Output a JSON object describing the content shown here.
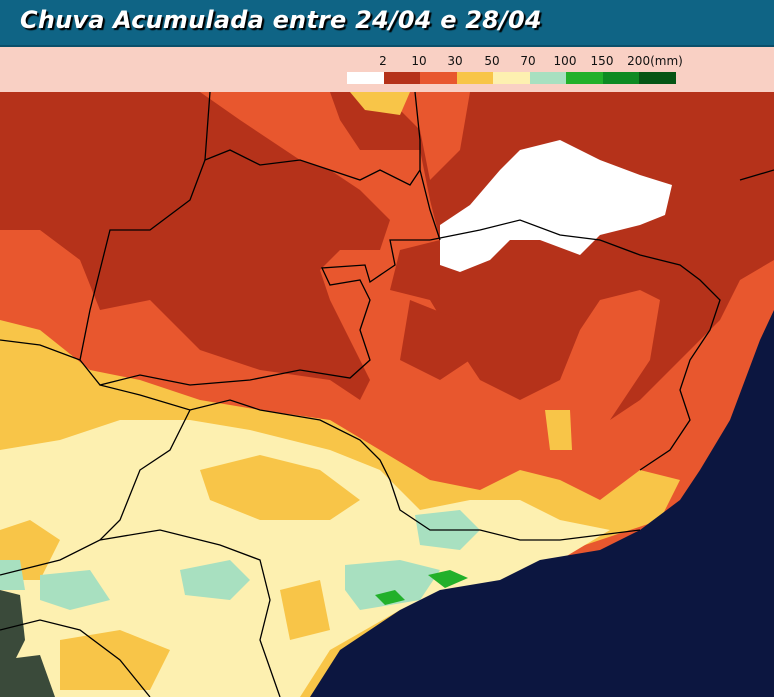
{
  "title": "Chuva Acumulada entre 24/04 e 28/04",
  "legend": {
    "unit": "(mm)",
    "labels": [
      "2",
      "10",
      "30",
      "50",
      "70",
      "100",
      "150",
      "200(mm)"
    ],
    "colors": [
      "#ffffff",
      "#b5321a",
      "#e8572e",
      "#f8c548",
      "#fdf0b0",
      "#a8e0c0",
      "#22b02a",
      "#0e8a22",
      "#065514"
    ]
  },
  "map_colors": {
    "ocean": "#0c1640",
    "land_outside": "#3a4a3a",
    "borders": "#000000"
  }
}
